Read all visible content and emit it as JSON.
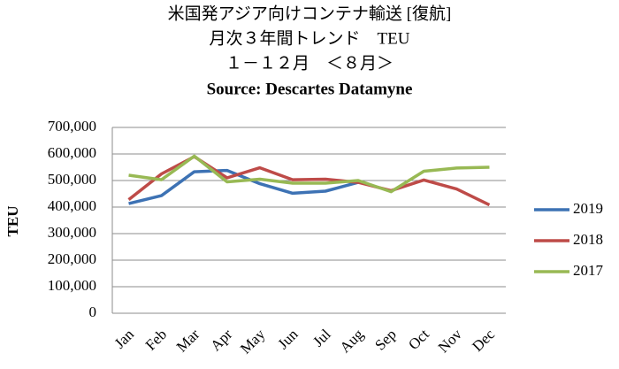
{
  "chart_data": {
    "type": "line",
    "title": "米国発アジア向けコンテナ輸送 [復航]",
    "subtitle": [
      "月次３年間トレンド　TEU",
      "１－１２月　＜８月＞",
      "Source: Descartes Datamyne"
    ],
    "y_label": "TEU",
    "categories": [
      "Jan",
      "Feb",
      "Mar",
      "Apr",
      "May",
      "Jun",
      "Jul",
      "Aug",
      "Sep",
      "Oct",
      "Nov",
      "Dec"
    ],
    "series": [
      {
        "name": "2019",
        "color": "#3d72b4",
        "values": [
          413000,
          443000,
          533000,
          538000,
          488000,
          452000,
          460000,
          493000,
          null,
          null,
          null,
          null
        ]
      },
      {
        "name": "2018",
        "color": "#be4b48",
        "values": [
          428000,
          525000,
          590000,
          510000,
          548000,
          503000,
          505000,
          493000,
          462000,
          502000,
          468000,
          408000
        ]
      },
      {
        "name": "2017",
        "color": "#98b954",
        "values": [
          520000,
          503000,
          592000,
          495000,
          505000,
          490000,
          490000,
          500000,
          458000,
          535000,
          547000,
          550000
        ]
      }
    ],
    "ylim": [
      0,
      700000
    ],
    "yticks": [
      0,
      {
        "value": 100000,
        "label": "100,000"
      },
      {
        "value": 200000,
        "label": "200,000"
      },
      {
        "value": 300000,
        "label": "300,000"
      },
      {
        "value": 400000,
        "label": "400,000"
      },
      {
        "value": 500000,
        "label": "500,000"
      },
      {
        "value": 600000,
        "label": "600,000"
      },
      {
        "value": 700000,
        "label": "700,000"
      }
    ],
    "grid": true,
    "legend": "right"
  }
}
